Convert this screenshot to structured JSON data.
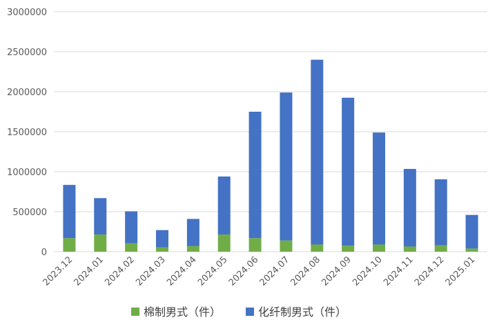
{
  "chart_data": {
    "type": "bar",
    "stacked": true,
    "categories": [
      "2023.12",
      "2024.01",
      "2024.02",
      "2024.03",
      "2024.04",
      "2024.05",
      "2024.06",
      "2024.07",
      "2024.08",
      "2024.09",
      "2024.10",
      "2024.11",
      "2024.12",
      "2025.01"
    ],
    "series": [
      {
        "name": "棉制男式（件）",
        "color": "#70ad47",
        "values": [
          170000,
          215000,
          105000,
          55000,
          70000,
          215000,
          170000,
          140000,
          90000,
          75000,
          90000,
          65000,
          80000,
          40000
        ]
      },
      {
        "name": "化纤制男式（件）",
        "color": "#4472c4",
        "values": [
          665000,
          455000,
          400000,
          215000,
          340000,
          725000,
          1580000,
          1850000,
          2310000,
          1850000,
          1400000,
          970000,
          825000,
          420000
        ]
      }
    ],
    "yticks": [
      "3000000",
      "2500000",
      "2000000",
      "1500000",
      "1000000",
      "500000",
      "0"
    ],
    "ylim": [
      0,
      3000000
    ],
    "grid": true,
    "legend": "bottom"
  }
}
